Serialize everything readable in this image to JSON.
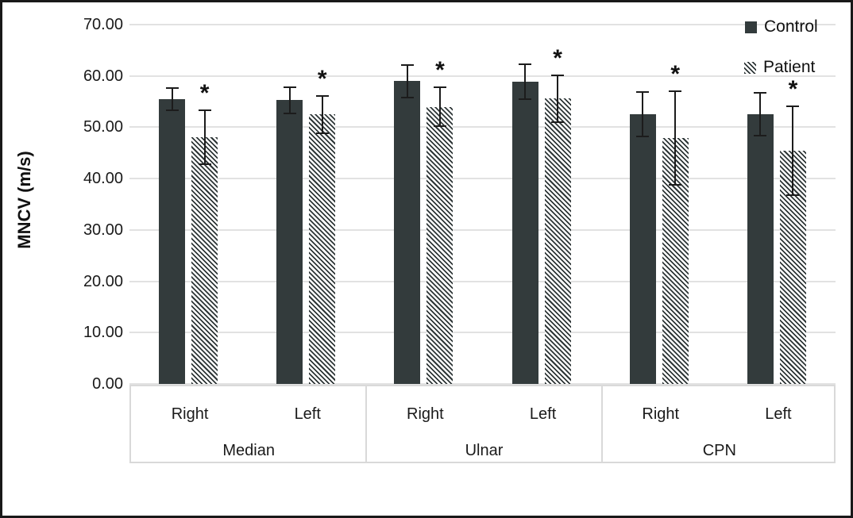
{
  "chart_data": {
    "type": "bar",
    "title": "",
    "xlabel": "",
    "ylabel": "MNCV (m/s)",
    "ylim": [
      0,
      70
    ],
    "ytick_step": 10,
    "ytick_labels": [
      "0.00",
      "10.00",
      "20.00",
      "30.00",
      "40.00",
      "50.00",
      "60.00",
      "70.00"
    ],
    "grid": true,
    "legend_position": "top-right",
    "groups": [
      {
        "label": "Median",
        "categories": [
          "Right",
          "Left"
        ]
      },
      {
        "label": "Ulnar",
        "categories": [
          "Right",
          "Left"
        ]
      },
      {
        "label": "CPN",
        "categories": [
          "Right",
          "Left"
        ]
      }
    ],
    "series": [
      {
        "name": "Control",
        "pattern": "solid",
        "color": "#333b3c",
        "values": [
          55.5,
          55.3,
          59.0,
          58.9,
          52.5,
          52.5
        ],
        "errors": [
          2.3,
          2.7,
          3.3,
          3.6,
          4.5,
          4.3
        ],
        "bar_annotations": [
          "",
          "",
          "",
          "",
          "",
          ""
        ]
      },
      {
        "name": "Patient",
        "pattern": "diagonal-hatch",
        "color": "#2e3637",
        "hatch_background": "#ffffff",
        "values": [
          48.0,
          52.5,
          54.0,
          55.6,
          47.9,
          45.4
        ],
        "errors": [
          5.4,
          3.8,
          4.0,
          4.7,
          9.2,
          8.8
        ],
        "bar_annotations": [
          "*",
          "*",
          "*",
          "*",
          "*",
          "*"
        ]
      }
    ],
    "colors": {
      "gridline": "#e2e2e2",
      "axis_table_border": "#d9d9d9",
      "error_bar": "#1c1c1c",
      "text": "#1a1a1a"
    }
  }
}
